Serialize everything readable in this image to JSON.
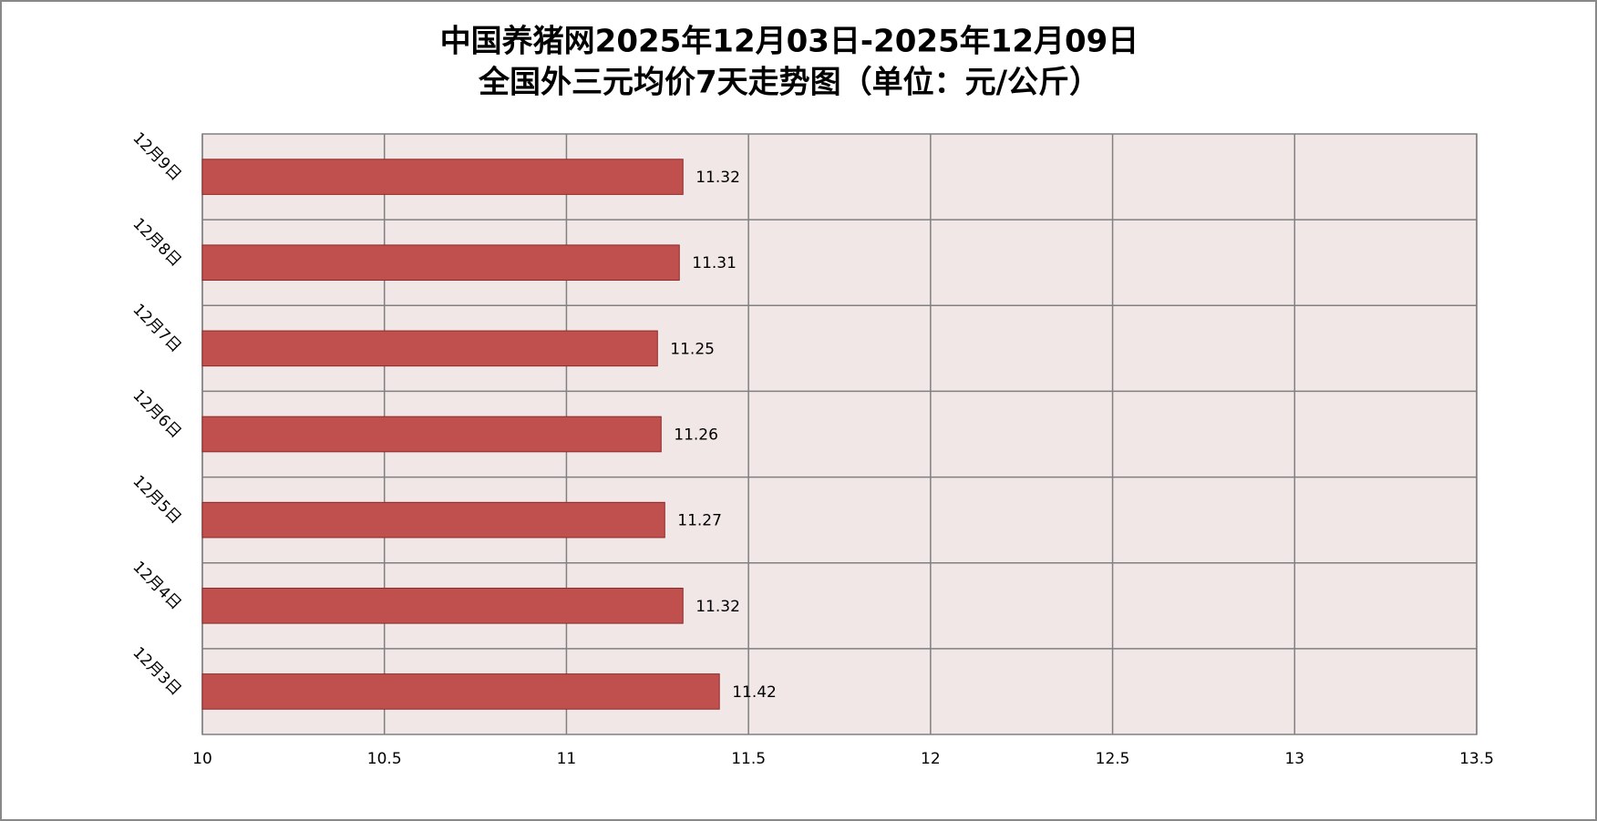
{
  "chart_data": {
    "type": "hbar",
    "title": "中国养猪网2025年12月03日-2025年12月09日",
    "subtitle": "全国外三元均价7天走势图（单位：元/公斤）",
    "categories": [
      "12月3日",
      "12月4日",
      "12月5日",
      "12月6日",
      "12月7日",
      "12月8日",
      "12月9日"
    ],
    "values": [
      11.42,
      11.32,
      11.27,
      11.26,
      11.25,
      11.31,
      11.32
    ],
    "color": "#c0504d",
    "xlim": [
      10,
      13.5
    ],
    "xticks": [
      10,
      10.5,
      11,
      11.5,
      12,
      12.5,
      13,
      13.5
    ],
    "grid": true
  }
}
